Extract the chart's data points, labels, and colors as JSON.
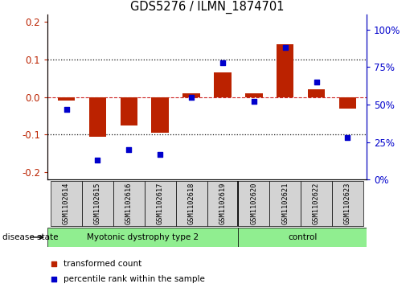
{
  "title": "GDS5276 / ILMN_1874701",
  "samples": [
    "GSM1102614",
    "GSM1102615",
    "GSM1102616",
    "GSM1102617",
    "GSM1102618",
    "GSM1102619",
    "GSM1102620",
    "GSM1102621",
    "GSM1102622",
    "GSM1102623"
  ],
  "red_values": [
    -0.01,
    -0.105,
    -0.075,
    -0.095,
    0.01,
    0.065,
    0.01,
    0.14,
    0.02,
    -0.03
  ],
  "blue_values": [
    47,
    13,
    20,
    17,
    55,
    78,
    52,
    88,
    65,
    28
  ],
  "group1_count": 6,
  "group1_label": "Myotonic dystrophy type 2",
  "group2_label": "control",
  "disease_state_label": "disease state",
  "ylim_left": [
    -0.22,
    0.22
  ],
  "ylim_right": [
    0,
    110
  ],
  "yticks_left": [
    -0.2,
    -0.1,
    0.0,
    0.1,
    0.2
  ],
  "yticks_right": [
    0,
    25,
    50,
    75,
    100
  ],
  "red_color": "#BB2200",
  "blue_color": "#0000CC",
  "zero_line_red": "#CC2222",
  "dot_line_color": "#111111",
  "green_color": "#90EE90",
  "gray_color": "#D3D3D3",
  "bar_width": 0.55,
  "marker_size": 25,
  "legend_red_label": "transformed count",
  "legend_blue_label": "percentile rank within the sample"
}
